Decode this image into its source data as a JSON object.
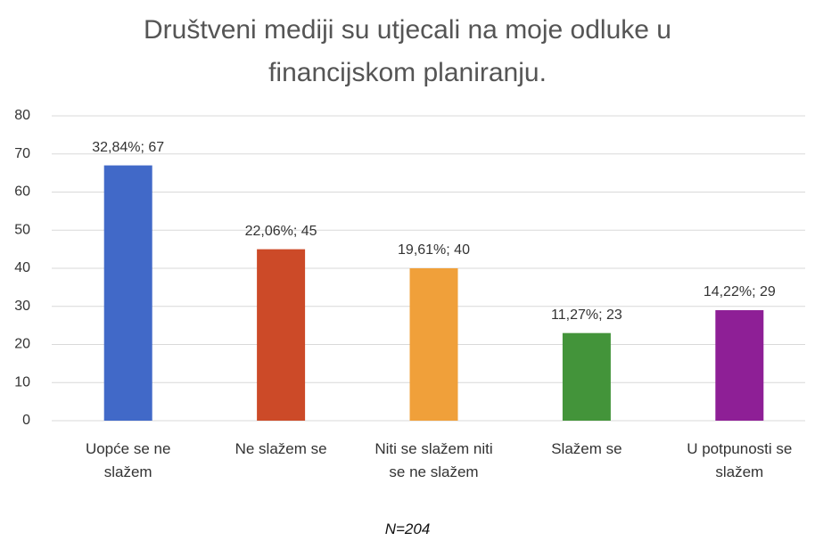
{
  "chart_data": {
    "type": "bar",
    "title": "Društveni mediji su utjecali na moje odluke u financijskom planiranju.",
    "categories": [
      "Uopće se ne slažem",
      "Ne slažem se",
      "Niti se slažem niti se ne slažem",
      "Slažem se",
      "U potpunosti se slažem"
    ],
    "values": [
      67,
      45,
      40,
      23,
      29
    ],
    "value_labels": [
      "32,84%; 67",
      "22,06%; 45",
      "19,61%; 40",
      "11,27%; 23",
      "14,22%; 29"
    ],
    "colors": [
      "#4169c8",
      "#cc4a28",
      "#f0a03a",
      "#43943a",
      "#8e1f96"
    ],
    "ylim": [
      0,
      80
    ],
    "yticks": [
      0,
      10,
      20,
      30,
      40,
      50,
      60,
      70,
      80
    ],
    "grid": true,
    "annotation": "N=204"
  }
}
